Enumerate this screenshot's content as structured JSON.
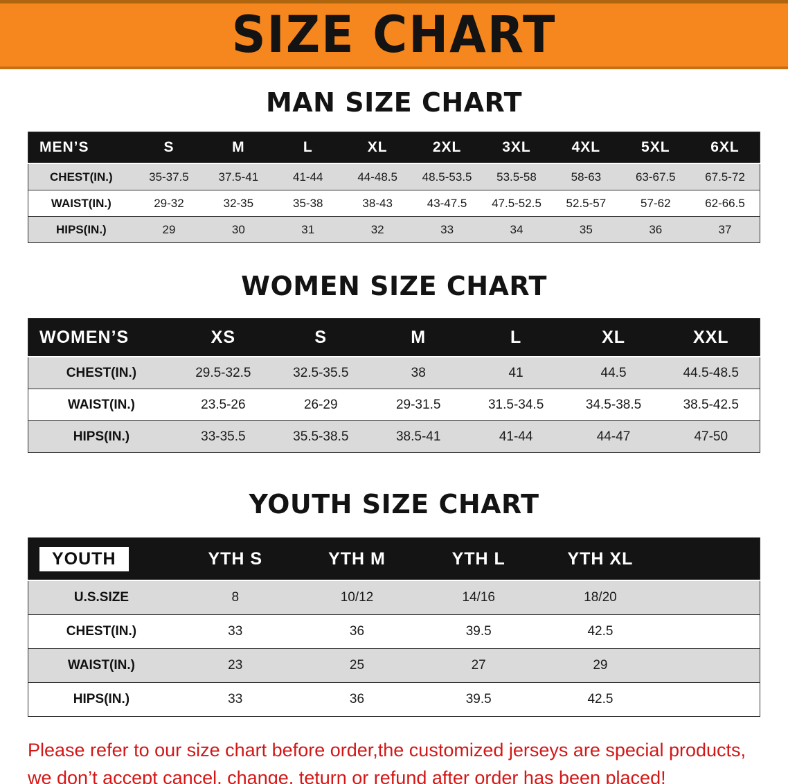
{
  "banner": {
    "title": "SIZE CHART"
  },
  "chart_data": [
    {
      "type": "table",
      "title": "MAN SIZE CHART",
      "columns": [
        "MEN’S",
        "S",
        "M",
        "L",
        "XL",
        "2XL",
        "3XL",
        "4XL",
        "5XL",
        "6XL"
      ],
      "rows": [
        [
          "CHEST(IN.)",
          "35-37.5",
          "37.5-41",
          "41-44",
          "44-48.5",
          "48.5-53.5",
          "53.5-58",
          "58-63",
          "63-67.5",
          "67.5-72"
        ],
        [
          "WAIST(IN.)",
          "29-32",
          "32-35",
          "35-38",
          "38-43",
          "43-47.5",
          "47.5-52.5",
          "52.5-57",
          "57-62",
          "62-66.5"
        ],
        [
          "HIPS(IN.)",
          "29",
          "30",
          "31",
          "32",
          "33",
          "34",
          "35",
          "36",
          "37"
        ]
      ],
      "layout": {
        "grid": "horizontal-rules",
        "stripe_first_row": true
      }
    },
    {
      "type": "table",
      "title": "WOMEN SIZE CHART",
      "columns": [
        "WOMEN’S",
        "XS",
        "S",
        "M",
        "L",
        "XL",
        "XXL"
      ],
      "rows": [
        [
          "CHEST(IN.)",
          "29.5-32.5",
          "32.5-35.5",
          "38",
          "41",
          "44.5",
          "44.5-48.5"
        ],
        [
          "WAIST(IN.)",
          "23.5-26",
          "26-29",
          "29-31.5",
          "31.5-34.5",
          "34.5-38.5",
          "38.5-42.5"
        ],
        [
          "HIPS(IN.)",
          "33-35.5",
          "35.5-38.5",
          "38.5-41",
          "41-44",
          "44-47",
          "47-50"
        ]
      ],
      "layout": {
        "grid": "horizontal-rules",
        "stripe_first_row": true
      }
    },
    {
      "type": "table",
      "title": "YOUTH SIZE CHART",
      "columns": [
        "YOUTH",
        "YTH S",
        "YTH M",
        "YTH L",
        "YTH XL"
      ],
      "rows": [
        [
          "U.S.SIZE",
          "8",
          "10/12",
          "14/16",
          "18/20"
        ],
        [
          "CHEST(IN.)",
          "33",
          "36",
          "39.5",
          "42.5"
        ],
        [
          "WAIST(IN.)",
          "23",
          "25",
          "27",
          "29"
        ],
        [
          "HIPS(IN.)",
          "33",
          "36",
          "39.5",
          "42.5"
        ]
      ],
      "layout": {
        "grid": "horizontal-rules",
        "stripe_first_row": true,
        "trailing_filler": true,
        "label_highlight": true
      }
    }
  ],
  "footer": {
    "line1": "Please refer to our size chart before order,the customized jerseys are special products,",
    "line2": "we don’t accept cancel, change, teturn or refund after order has been placed!"
  },
  "colors": {
    "banner_bg": "#F6871E",
    "header_row_bg": "#141414",
    "stripe_bg": "#DADADA",
    "disclaimer_color": "#D21717"
  }
}
